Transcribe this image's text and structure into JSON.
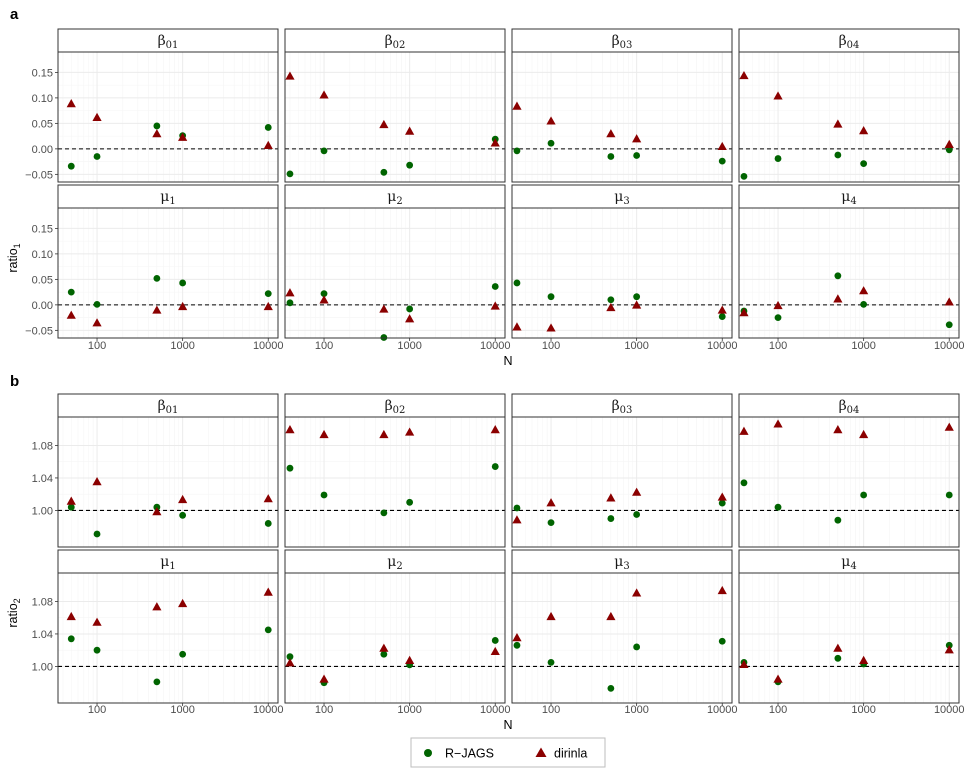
{
  "colors": {
    "R-JAGS": "#006400",
    "dirinla": "#8B0000",
    "grid_major": "#ebebeb",
    "grid_minor": "#f5f5f5",
    "strip_fill": "#ffffff",
    "border": "#333333"
  },
  "chart_data": [
    {
      "type": "scatter",
      "panel_label": "a",
      "ylabel": "ratio",
      "ylabel_sub": "1",
      "xlabel": "N",
      "x_scale": "log10",
      "xlim": [
        35,
        13000
      ],
      "ylim": [
        -0.065,
        0.19
      ],
      "x_ticks": [
        100,
        1000,
        10000
      ],
      "y_ticks": [
        -0.05,
        0,
        0.05,
        0.1,
        0.15
      ],
      "x_tick_labels": [
        "100",
        "1000",
        "10000"
      ],
      "y_tick_labels": [
        "−0.05",
        "0.00",
        "0.05",
        "0.10",
        "0.15"
      ],
      "reference_line": 0,
      "facets": [
        {
          "sym": "β",
          "sub": "01",
          "series": [
            {
              "name": "R-JAGS",
              "x": [
                50,
                100,
                500,
                1000,
                10000
              ],
              "y": [
                -0.034,
                -0.015,
                0.045,
                0.026,
                0.042
              ]
            },
            {
              "name": "dirinla",
              "x": [
                50,
                100,
                500,
                1000,
                10000
              ],
              "y": [
                0.088,
                0.061,
                0.029,
                0.022,
                0.006
              ]
            }
          ]
        },
        {
          "sym": "β",
          "sub": "02",
          "series": [
            {
              "name": "R-JAGS",
              "x": [
                40,
                100,
                500,
                1000,
                10000
              ],
              "y": [
                -0.049,
                -0.004,
                -0.046,
                -0.032,
                0.019
              ]
            },
            {
              "name": "dirinla",
              "x": [
                40,
                100,
                500,
                1000,
                10000
              ],
              "y": [
                0.142,
                0.105,
                0.047,
                0.034,
                0.011
              ]
            }
          ]
        },
        {
          "sym": "β",
          "sub": "03",
          "series": [
            {
              "name": "R-JAGS",
              "x": [
                40,
                100,
                500,
                1000,
                10000
              ],
              "y": [
                -0.004,
                0.011,
                -0.015,
                -0.013,
                -0.024
              ]
            },
            {
              "name": "dirinla",
              "x": [
                40,
                100,
                500,
                1000,
                10000
              ],
              "y": [
                0.083,
                0.054,
                0.029,
                0.019,
                0.004
              ]
            }
          ]
        },
        {
          "sym": "β",
          "sub": "04",
          "series": [
            {
              "name": "R-JAGS",
              "x": [
                40,
                100,
                500,
                1000,
                10000
              ],
              "y": [
                -0.054,
                -0.019,
                -0.012,
                -0.029,
                -0.002
              ]
            },
            {
              "name": "dirinla",
              "x": [
                40,
                100,
                500,
                1000,
                10000
              ],
              "y": [
                0.143,
                0.103,
                0.048,
                0.035,
                0.008
              ]
            }
          ]
        },
        {
          "sym": "μ",
          "sub": "1",
          "series": [
            {
              "name": "R-JAGS",
              "x": [
                50,
                100,
                500,
                1000,
                10000
              ],
              "y": [
                0.025,
                0.001,
                0.052,
                0.043,
                0.022
              ]
            },
            {
              "name": "dirinla",
              "x": [
                50,
                100,
                500,
                1000,
                10000
              ],
              "y": [
                -0.021,
                -0.036,
                -0.011,
                -0.004,
                -0.004
              ]
            }
          ]
        },
        {
          "sym": "μ",
          "sub": "2",
          "series": [
            {
              "name": "R-JAGS",
              "x": [
                40,
                100,
                500,
                1000,
                10000
              ],
              "y": [
                0.004,
                0.022,
                -0.064,
                -0.008,
                0.036
              ]
            },
            {
              "name": "dirinla",
              "x": [
                40,
                100,
                500,
                1000,
                10000
              ],
              "y": [
                0.023,
                0.009,
                -0.009,
                -0.028,
                -0.003
              ]
            }
          ]
        },
        {
          "sym": "μ",
          "sub": "3",
          "series": [
            {
              "name": "R-JAGS",
              "x": [
                40,
                100,
                500,
                1000,
                10000
              ],
              "y": [
                0.043,
                0.016,
                0.01,
                0.016,
                -0.023
              ]
            },
            {
              "name": "dirinla",
              "x": [
                40,
                100,
                500,
                1000,
                10000
              ],
              "y": [
                -0.044,
                -0.046,
                -0.006,
                -0.001,
                -0.011
              ]
            }
          ]
        },
        {
          "sym": "μ",
          "sub": "4",
          "series": [
            {
              "name": "R-JAGS",
              "x": [
                40,
                100,
                500,
                1000,
                10000
              ],
              "y": [
                -0.012,
                -0.025,
                0.057,
                0.001,
                -0.039
              ]
            },
            {
              "name": "dirinla",
              "x": [
                40,
                100,
                500,
                1000,
                10000
              ],
              "y": [
                -0.016,
                -0.002,
                0.011,
                0.027,
                0.005
              ]
            }
          ]
        }
      ]
    },
    {
      "type": "scatter",
      "panel_label": "b",
      "ylabel": "ratio",
      "ylabel_sub": "2",
      "xlabel": "N",
      "x_scale": "log10",
      "xlim": [
        35,
        13000
      ],
      "ylim": [
        0.955,
        1.115
      ],
      "x_ticks": [
        100,
        1000,
        10000
      ],
      "y_ticks": [
        1.0,
        1.04,
        1.08
      ],
      "x_tick_labels": [
        "100",
        "1000",
        "10000"
      ],
      "y_tick_labels": [
        "1.00",
        "1.04",
        "1.08"
      ],
      "reference_line": 1,
      "facets": [
        {
          "sym": "β",
          "sub": "01",
          "series": [
            {
              "name": "R-JAGS",
              "x": [
                50,
                100,
                500,
                1000,
                10000
              ],
              "y": [
                1.004,
                0.971,
                1.004,
                0.994,
                0.984
              ]
            },
            {
              "name": "dirinla",
              "x": [
                50,
                100,
                500,
                1000,
                10000
              ],
              "y": [
                1.011,
                1.035,
                0.998,
                1.013,
                1.014
              ]
            }
          ]
        },
        {
          "sym": "β",
          "sub": "02",
          "series": [
            {
              "name": "R-JAGS",
              "x": [
                40,
                100,
                500,
                1000,
                10000
              ],
              "y": [
                1.052,
                1.019,
                0.997,
                1.01,
                1.054
              ]
            },
            {
              "name": "dirinla",
              "x": [
                40,
                100,
                500,
                1000,
                10000
              ],
              "y": [
                1.099,
                1.093,
                1.093,
                1.096,
                1.099
              ]
            }
          ]
        },
        {
          "sym": "β",
          "sub": "03",
          "series": [
            {
              "name": "R-JAGS",
              "x": [
                40,
                100,
                500,
                1000,
                10000
              ],
              "y": [
                1.003,
                0.985,
                0.99,
                0.995,
                1.009
              ]
            },
            {
              "name": "dirinla",
              "x": [
                40,
                100,
                500,
                1000,
                10000
              ],
              "y": [
                0.988,
                1.009,
                1.015,
                1.022,
                1.016
              ]
            }
          ]
        },
        {
          "sym": "β",
          "sub": "04",
          "series": [
            {
              "name": "R-JAGS",
              "x": [
                40,
                100,
                500,
                1000,
                10000
              ],
              "y": [
                1.034,
                1.004,
                0.988,
                1.019,
                1.019
              ]
            },
            {
              "name": "dirinla",
              "x": [
                40,
                100,
                500,
                1000,
                10000
              ],
              "y": [
                1.097,
                1.106,
                1.099,
                1.093,
                1.102
              ]
            }
          ]
        },
        {
          "sym": "μ",
          "sub": "1",
          "series": [
            {
              "name": "R-JAGS",
              "x": [
                50,
                100,
                500,
                1000,
                10000
              ],
              "y": [
                1.034,
                1.02,
                0.981,
                1.015,
                1.045
              ]
            },
            {
              "name": "dirinla",
              "x": [
                50,
                100,
                500,
                1000,
                10000
              ],
              "y": [
                1.061,
                1.054,
                1.073,
                1.077,
                1.091
              ]
            }
          ]
        },
        {
          "sym": "μ",
          "sub": "2",
          "series": [
            {
              "name": "R-JAGS",
              "x": [
                40,
                100,
                500,
                1000,
                10000
              ],
              "y": [
                1.012,
                0.98,
                1.015,
                1.002,
                1.032
              ]
            },
            {
              "name": "dirinla",
              "x": [
                40,
                100,
                500,
                1000,
                10000
              ],
              "y": [
                1.004,
                0.984,
                1.022,
                1.007,
                1.018
              ]
            }
          ]
        },
        {
          "sym": "μ",
          "sub": "3",
          "series": [
            {
              "name": "R-JAGS",
              "x": [
                40,
                100,
                500,
                1000,
                10000
              ],
              "y": [
                1.026,
                1.005,
                0.973,
                1.024,
                1.031
              ]
            },
            {
              "name": "dirinla",
              "x": [
                40,
                100,
                500,
                1000,
                10000
              ],
              "y": [
                1.035,
                1.061,
                1.061,
                1.09,
                1.093
              ]
            }
          ]
        },
        {
          "sym": "μ",
          "sub": "4",
          "series": [
            {
              "name": "R-JAGS",
              "x": [
                40,
                100,
                500,
                1000,
                10000
              ],
              "y": [
                1.005,
                0.981,
                1.01,
                1.003,
                1.026
              ]
            },
            {
              "name": "dirinla",
              "x": [
                40,
                100,
                500,
                1000,
                10000
              ],
              "y": [
                1.002,
                0.984,
                1.022,
                1.007,
                1.02
              ]
            }
          ]
        }
      ]
    }
  ],
  "legend": {
    "items": [
      {
        "label": "R−JAGS",
        "series": "R-JAGS",
        "shape": "circle"
      },
      {
        "label": "dirinla",
        "series": "dirinla",
        "shape": "triangle"
      }
    ]
  }
}
